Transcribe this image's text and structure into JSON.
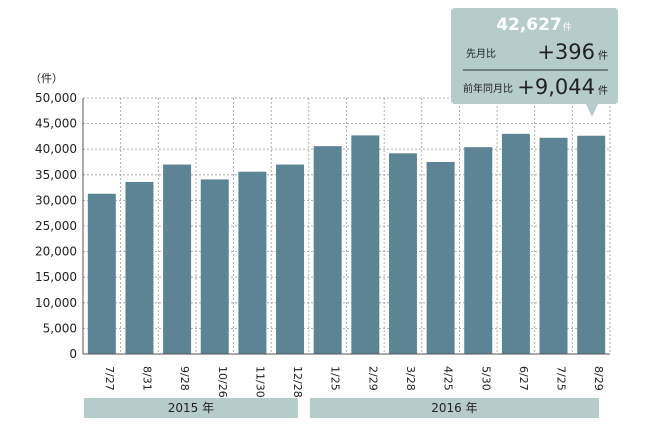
{
  "chart_data": {
    "type": "bar",
    "unit_label": "（件）",
    "categories": [
      "7/27",
      "8/31",
      "9/28",
      "10/26",
      "11/30",
      "12/28",
      "1/25",
      "2/29",
      "3/28",
      "4/25",
      "5/30",
      "6/27",
      "7/25",
      "8/29"
    ],
    "values": [
      31300,
      33600,
      37000,
      34100,
      35600,
      37000,
      40600,
      42700,
      39200,
      37500,
      40400,
      43000,
      42231,
      42627
    ],
    "ylim": [
      0,
      50000
    ],
    "yticks": [
      "0",
      "5,000",
      "10,000",
      "15,000",
      "20,000",
      "25,000",
      "30,000",
      "35,000",
      "40,000",
      "45,000",
      "50,000"
    ],
    "ytick_values": [
      0,
      5000,
      10000,
      15000,
      20000,
      25000,
      30000,
      35000,
      40000,
      45000,
      50000
    ],
    "grid": true,
    "year_groups": [
      {
        "label": "2015 年",
        "from": 0,
        "to": 5
      },
      {
        "label": "2016 年",
        "from": 6,
        "to": 13
      }
    ],
    "callout": {
      "total": "42,627",
      "total_unit": "件",
      "mom_label": "先月比",
      "mom_value": "+396",
      "mom_unit": "件",
      "yoy_label": "前年同月比",
      "yoy_value": "+9,044",
      "yoy_unit": "件"
    },
    "colors": {
      "bar": "#5d8494",
      "callout_bg": "#b6cccb",
      "year_band": "#b6cccb",
      "grid": "#9a9a9a"
    }
  }
}
